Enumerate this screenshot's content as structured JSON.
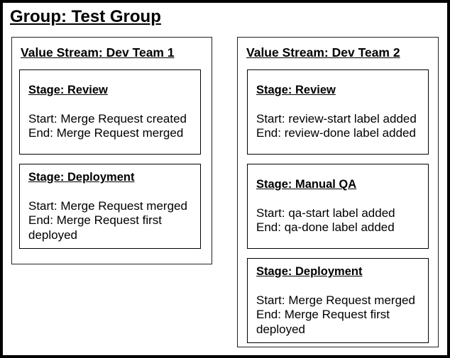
{
  "group": {
    "title": "Group: Test Group"
  },
  "value_streams": [
    {
      "title": "Value Stream: Dev Team 1",
      "stages": [
        {
          "title": "Stage: Review",
          "start": "Start: Merge Request created",
          "end": "End: Merge Request merged"
        },
        {
          "title": "Stage: Deployment",
          "start": "Start: Merge Request merged",
          "end": "End: Merge Request first deployed"
        }
      ]
    },
    {
      "title": "Value Stream: Dev Team 2",
      "stages": [
        {
          "title": "Stage: Review",
          "start": "Start: review-start label added",
          "end": "End: review-done label added"
        },
        {
          "title": "Stage: Manual QA",
          "start": "Start: qa-start label added",
          "end": "End: qa-done label added"
        },
        {
          "title": "Stage: Deployment",
          "start": "Start: Merge Request merged",
          "end": "End: Merge Request first deployed"
        }
      ]
    }
  ]
}
